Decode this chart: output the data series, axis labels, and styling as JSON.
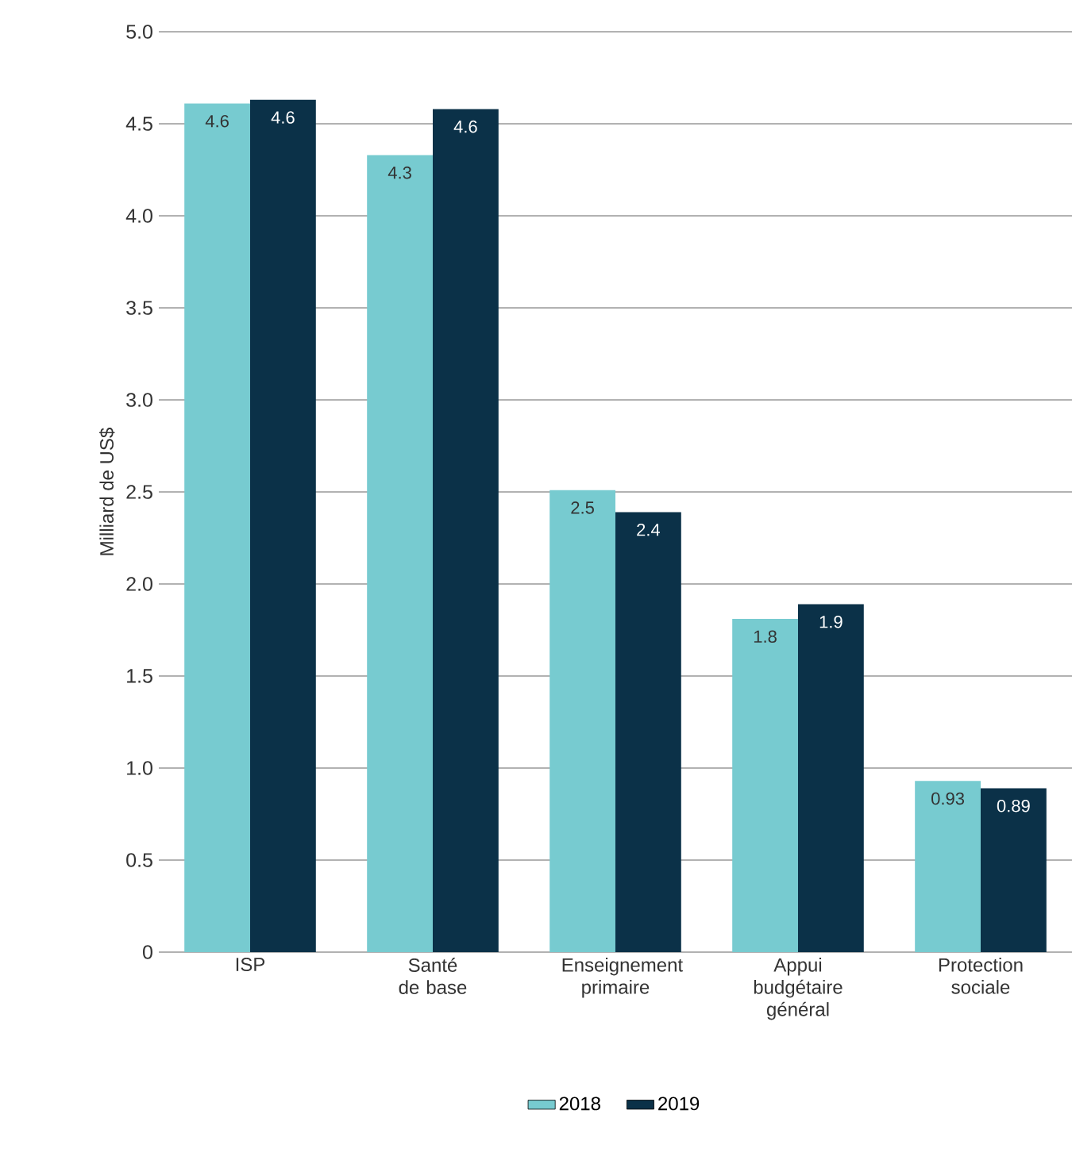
{
  "chart_data": {
    "type": "bar",
    "ylabel": "Milliard de US$",
    "categories": [
      "ISP",
      "Santé de base",
      "Enseignement primaire",
      "Appui budgétaire général",
      "Protection sociale"
    ],
    "series": [
      {
        "name": "2018",
        "color": "#77cbd0",
        "values": [
          4.61,
          4.33,
          2.51,
          1.81,
          0.93
        ],
        "value_labels": [
          "4.6",
          "4.3",
          "2.5",
          "1.8",
          "0.93"
        ]
      },
      {
        "name": "2019",
        "color": "#0b3148",
        "values": [
          4.63,
          4.58,
          2.39,
          1.89,
          0.89
        ],
        "value_labels": [
          "4.6",
          "4.6",
          "2.4",
          "1.9",
          "0.89"
        ]
      }
    ],
    "ylim": [
      0,
      5
    ],
    "yticks": [
      {
        "value": 0,
        "label": "0"
      },
      {
        "value": 0.5,
        "label": "0.5"
      },
      {
        "value": 1,
        "label": "1.0"
      },
      {
        "value": 1.5,
        "label": "1.5"
      },
      {
        "value": 2,
        "label": "2.0"
      },
      {
        "value": 2.5,
        "label": "2.5"
      },
      {
        "value": 3,
        "label": "3.0"
      },
      {
        "value": 3.5,
        "label": "3.5"
      },
      {
        "value": 4,
        "label": "4.0"
      },
      {
        "value": 4.5,
        "label": "4.5"
      },
      {
        "value": 5,
        "label": "5.0"
      }
    ],
    "grid": "y",
    "legend": "bottom"
  }
}
